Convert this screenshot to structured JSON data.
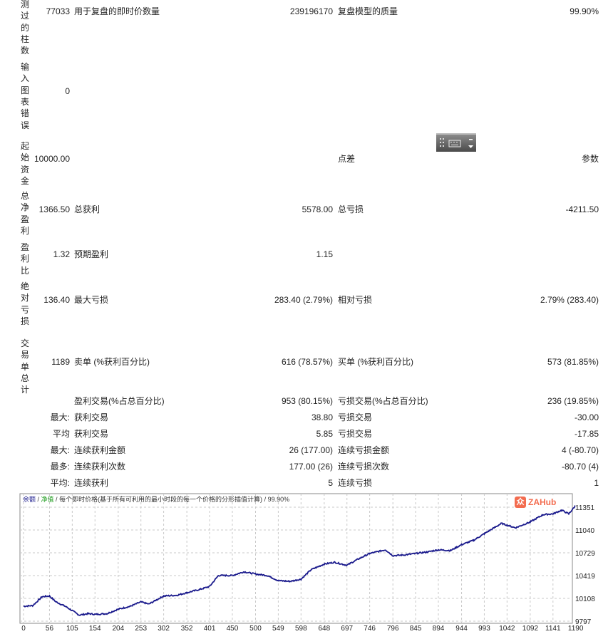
{
  "report": {
    "rows": [
      {
        "label_chars": [
          "测",
          "过",
          "的",
          "柱",
          "数"
        ],
        "value": "77033",
        "c2_label": "用于复盘的即时价数量",
        "c2_value": "239196170",
        "c3_label": "复盘模型的质量",
        "c3_value": "99.90%"
      },
      {
        "label_chars": [
          "输",
          "入",
          "图",
          "表",
          "错",
          "误"
        ],
        "value": "0",
        "c2_label": "",
        "c2_value": "",
        "c3_label": "",
        "c3_value": ""
      },
      {
        "label_chars": [
          "起",
          "始",
          "资",
          "金"
        ],
        "value": "10000.00",
        "c2_label": "",
        "c2_value": "",
        "c3_label": "点差",
        "c3_value": "参数"
      },
      {
        "label_chars": [
          "总",
          "净",
          "盈",
          "利"
        ],
        "value": "1366.50",
        "c2_label": "总获利",
        "c2_value": "5578.00",
        "c3_label": "总亏损",
        "c3_value": "-4211.50"
      },
      {
        "label_chars": [
          "盈",
          "利",
          "比"
        ],
        "value": "1.32",
        "c2_label": "预期盈利",
        "c2_value": "1.15",
        "c3_label": "",
        "c3_value": ""
      },
      {
        "label_chars": [
          "绝",
          "对",
          "亏",
          "损"
        ],
        "value": "136.40",
        "c2_label": "最大亏损",
        "c2_value": "283.40 (2.79%)",
        "c3_label": "相对亏损",
        "c3_value": "2.79% (283.40)"
      },
      {
        "label_chars": [
          "交",
          "易",
          "单",
          "总",
          "计"
        ],
        "value": "1189",
        "c2_label": "卖单 (%获利百分比)",
        "c2_value": "616 (78.57%)",
        "c3_label": "买单 (%获利百分比)",
        "c3_value": "573 (81.85%)"
      }
    ],
    "sub_rows": [
      {
        "prefix": "",
        "c2_label": "盈利交易(%占总百分比)",
        "c2_value": "953 (80.15%)",
        "c3_label": "亏损交易(%占总百分比)",
        "c3_value": "236 (19.85%)"
      },
      {
        "prefix": "最大:",
        "c2_label": "获利交易",
        "c2_value": "38.80",
        "c3_label": "亏损交易",
        "c3_value": "-30.00"
      },
      {
        "prefix": "平均",
        "c2_label": "获利交易",
        "c2_value": "5.85",
        "c3_label": "亏损交易",
        "c3_value": "-17.85"
      },
      {
        "prefix": "最大:",
        "c2_label": "连续获利金额",
        "c2_value": "26 (177.00)",
        "c3_label": "连续亏损金额",
        "c3_value": "4 (-80.70)"
      },
      {
        "prefix": "最多:",
        "c2_label": "连续获利次数",
        "c2_value": "177.00 (26)",
        "c3_label": "连续亏损次数",
        "c3_value": "-80.70 (4)"
      },
      {
        "prefix": "平均:",
        "c2_label": "连续获利",
        "c2_value": "5",
        "c3_label": "连续亏损",
        "c3_value": "1"
      }
    ]
  },
  "toolbar_widget": {
    "icons": [
      "grip-icon",
      "keyboard-icon",
      "scroll-arrows-icon"
    ]
  },
  "chart_data": {
    "type": "line",
    "legend": {
      "balance": "余额",
      "equity": "净值",
      "sep": " / ",
      "description": "每个即时价格(基于所有可利用的最小时段的每一个价格的分形插值计算)",
      "quality": "99.90%"
    },
    "colors": {
      "balance": "#1a1a8c",
      "equity": "#1a9a1a",
      "grid": "#c8c8c8"
    },
    "x_ticks": [
      "0",
      "56",
      "105",
      "154",
      "204",
      "253",
      "302",
      "352",
      "401",
      "450",
      "500",
      "549",
      "598",
      "648",
      "697",
      "746",
      "796",
      "845",
      "894",
      "944",
      "993",
      "1042",
      "1092",
      "1141",
      "1190"
    ],
    "y_ticks": [
      "11351",
      "11040",
      "10729",
      "10419",
      "10108",
      "9797"
    ],
    "xlim": [
      0,
      1189
    ],
    "ylim": [
      9797,
      11351
    ],
    "grid": true,
    "series": [
      {
        "name": "余额",
        "x": [
          0,
          20,
          40,
          56,
          70,
          90,
          105,
          120,
          140,
          154,
          180,
          204,
          230,
          253,
          270,
          302,
          330,
          352,
          380,
          401,
          420,
          450,
          475,
          500,
          525,
          549,
          575,
          598,
          620,
          648,
          670,
          697,
          720,
          746,
          780,
          796,
          820,
          845,
          870,
          894,
          920,
          944,
          970,
          993,
          1030,
          1060,
          1092,
          1120,
          1141,
          1160,
          1175,
          1189
        ],
        "y": [
          10000,
          10010,
          10130,
          10140,
          10060,
          10000,
          9940,
          9880,
          9900,
          9890,
          9900,
          9960,
          10000,
          10060,
          10030,
          10140,
          10150,
          10185,
          10230,
          10270,
          10420,
          10420,
          10470,
          10440,
          10420,
          10350,
          10340,
          10370,
          10500,
          10575,
          10600,
          10560,
          10640,
          10720,
          10770,
          10690,
          10700,
          10720,
          10740,
          10770,
          10760,
          10840,
          10900,
          10990,
          11130,
          11070,
          11150,
          11250,
          11260,
          11310,
          11260,
          11366.5
        ]
      }
    ]
  },
  "watermark": {
    "text": "ZAHub",
    "logo_glyph": "众"
  }
}
